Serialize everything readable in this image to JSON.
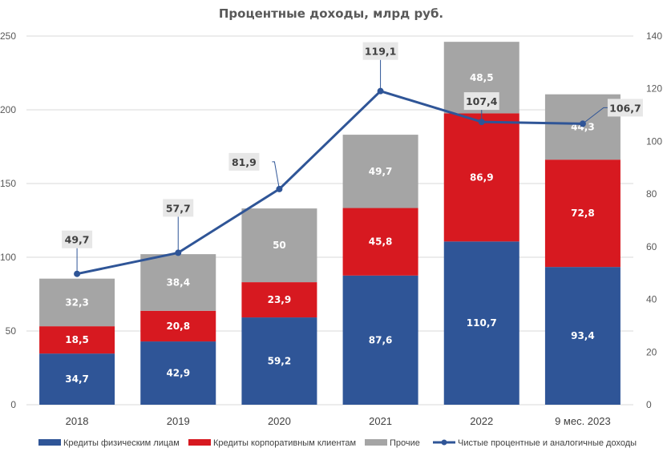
{
  "chart_data": {
    "type": "bar",
    "subtype": "stacked-bar-with-line",
    "title": "Процентные доходы, млрд руб.",
    "categories": [
      "2018",
      "2019",
      "2020",
      "2021",
      "2022",
      "9 мес. 2023"
    ],
    "series": [
      {
        "name": "Кредиты физическим лицам",
        "type": "bar",
        "axis": "left",
        "color": "#2F5597",
        "values": [
          34.7,
          42.9,
          59.2,
          87.6,
          110.7,
          93.4
        ],
        "labels": [
          "34,7",
          "42,9",
          "59,2",
          "87,6",
          "110,7",
          "93,4"
        ]
      },
      {
        "name": "Кредиты корпоративным клиентам",
        "type": "bar",
        "axis": "left",
        "color": "#D71920",
        "values": [
          18.5,
          20.8,
          23.9,
          45.8,
          86.9,
          72.8
        ],
        "labels": [
          "18,5",
          "20,8",
          "23,9",
          "45,8",
          "86,9",
          "72,8"
        ]
      },
      {
        "name": "Прочие",
        "type": "bar",
        "axis": "left",
        "color": "#A5A5A5",
        "values": [
          32.3,
          38.4,
          50,
          49.7,
          48.5,
          44.3
        ],
        "labels": [
          "32,3",
          "38,4",
          "50",
          "49,7",
          "48,5",
          "44,3"
        ]
      },
      {
        "name": "Чистые процентные и аналогичные доходы",
        "type": "line",
        "axis": "right",
        "color": "#2F5597",
        "values": [
          49.7,
          57.7,
          81.9,
          119.1,
          107.4,
          106.7
        ],
        "labels": [
          "49,7",
          "57,7",
          "81,9",
          "119,1",
          "107,4",
          "106,7"
        ]
      }
    ],
    "left_axis": {
      "min": 0,
      "max": 250,
      "step": 50,
      "ticks": [
        "0",
        "50",
        "100",
        "150",
        "200",
        "250"
      ]
    },
    "right_axis": {
      "min": 0,
      "max": 140,
      "step": 20,
      "ticks": [
        "0",
        "20",
        "40",
        "60",
        "80",
        "100",
        "120",
        "140"
      ]
    },
    "xlabel": "",
    "ylabel": "",
    "grid": true,
    "legend_position": "bottom"
  }
}
